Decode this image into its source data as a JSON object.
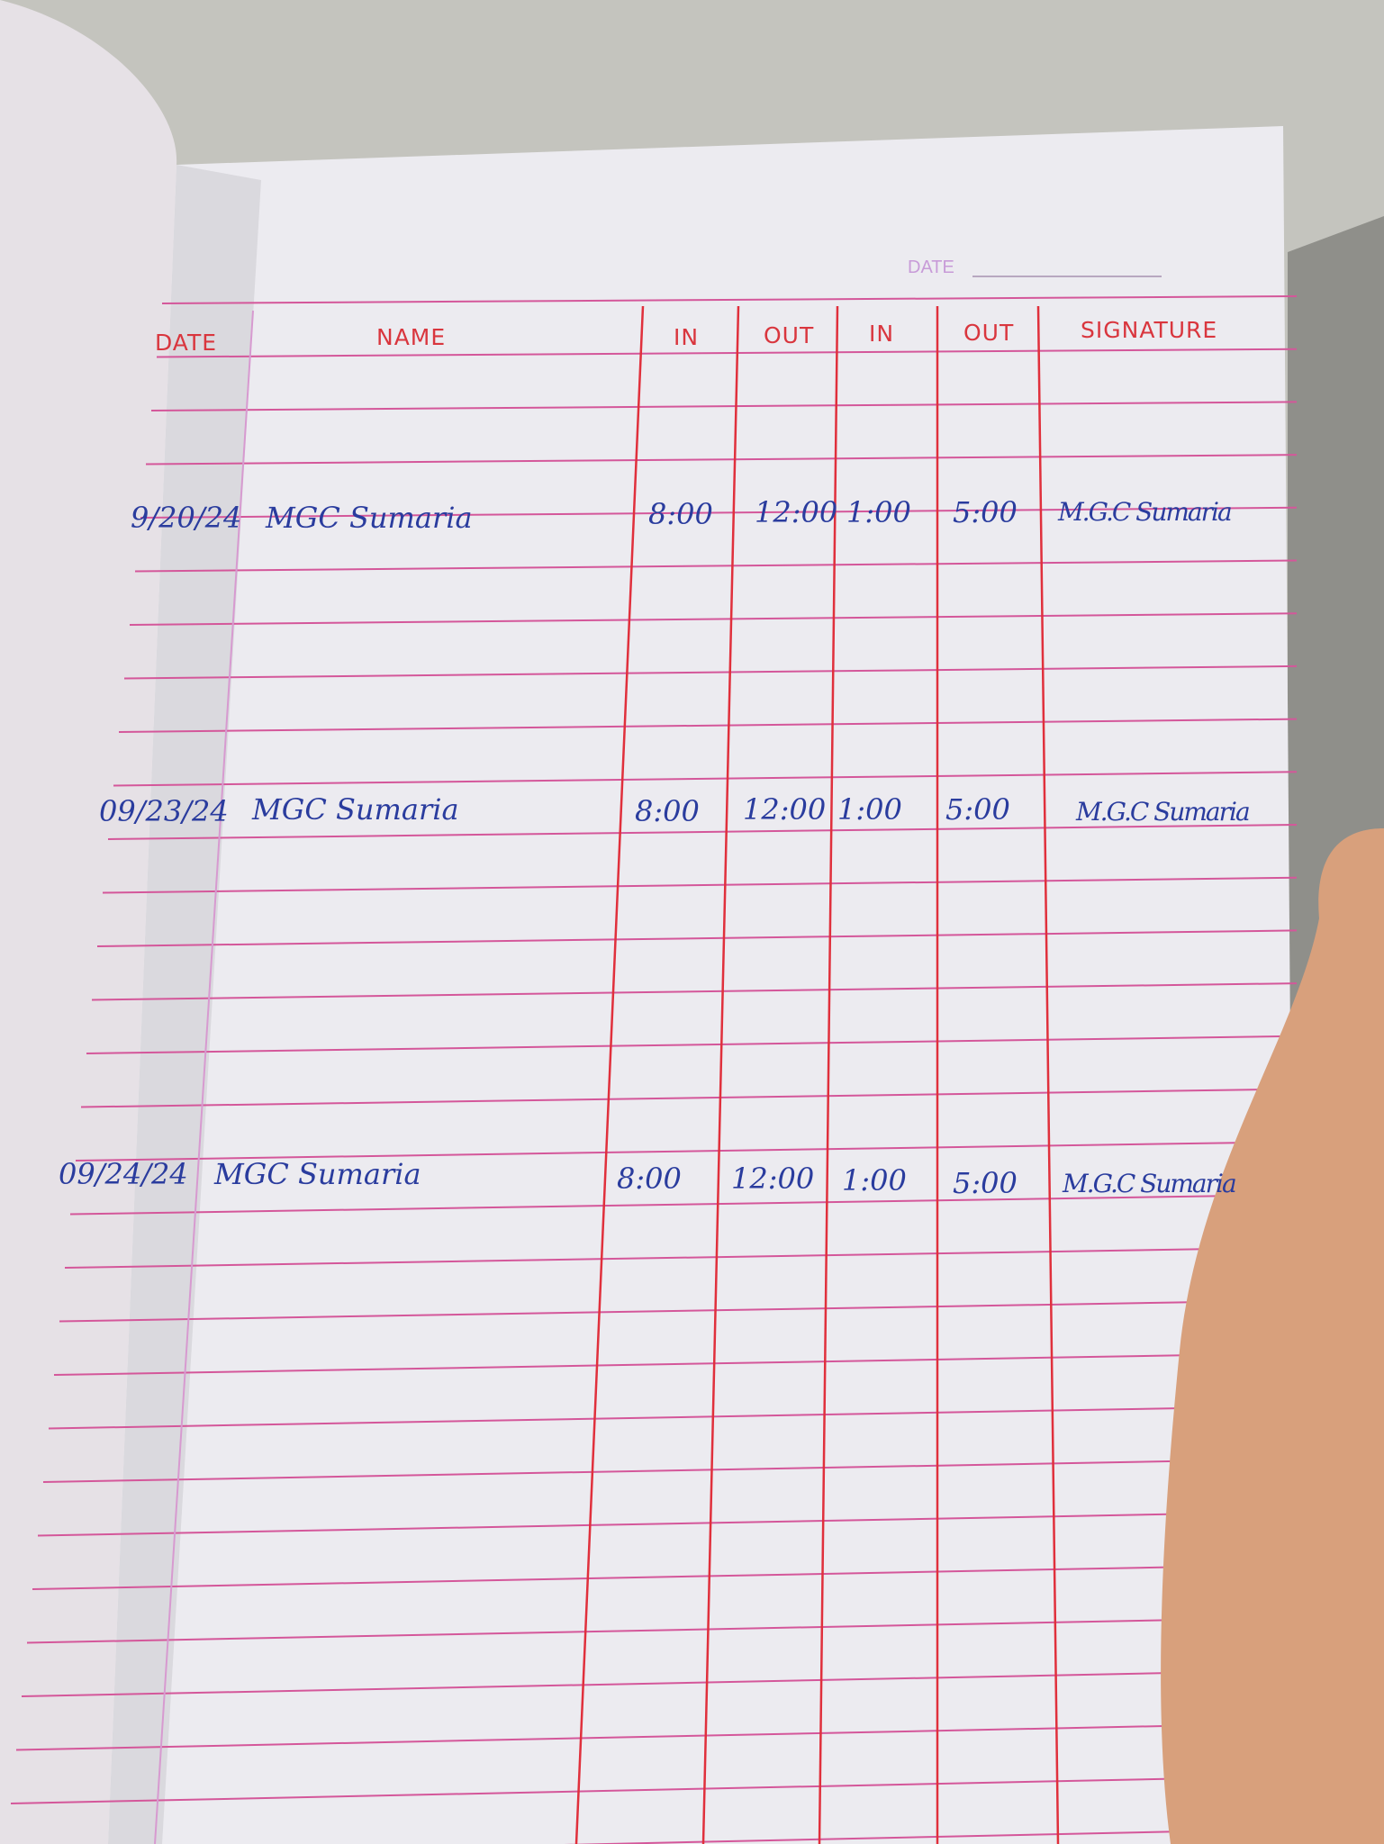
{
  "page_date_label": "DATE",
  "columns": [
    "DATE",
    "NAME",
    "IN",
    "OUT",
    "IN",
    "OUT",
    "SIGNATURE"
  ],
  "entries": [
    {
      "date": "9/20/24",
      "name": "MGC Sumaria",
      "in1": "8:00",
      "out1": "12:00",
      "in2": "1:00",
      "out2": "5:00",
      "signature": "M.G.C Sumaria"
    },
    {
      "date": "09/23/24",
      "name": "MGC Sumaria",
      "in1": "8:00",
      "out1": "12:00",
      "in2": "1:00",
      "out2": "5:00",
      "signature": "M.G.C Sumaria"
    },
    {
      "date": "09/24/24",
      "name": "MGC Sumaria",
      "in1": "8:00",
      "out1": "12:00",
      "in2": "1:00",
      "out2": "5:00",
      "signature": "M.G.C Sumaria"
    }
  ],
  "colors": {
    "ruling": "#d4579a",
    "columns": "#e0303c",
    "ink": "#2a3c9e",
    "header": "#d9363e"
  }
}
